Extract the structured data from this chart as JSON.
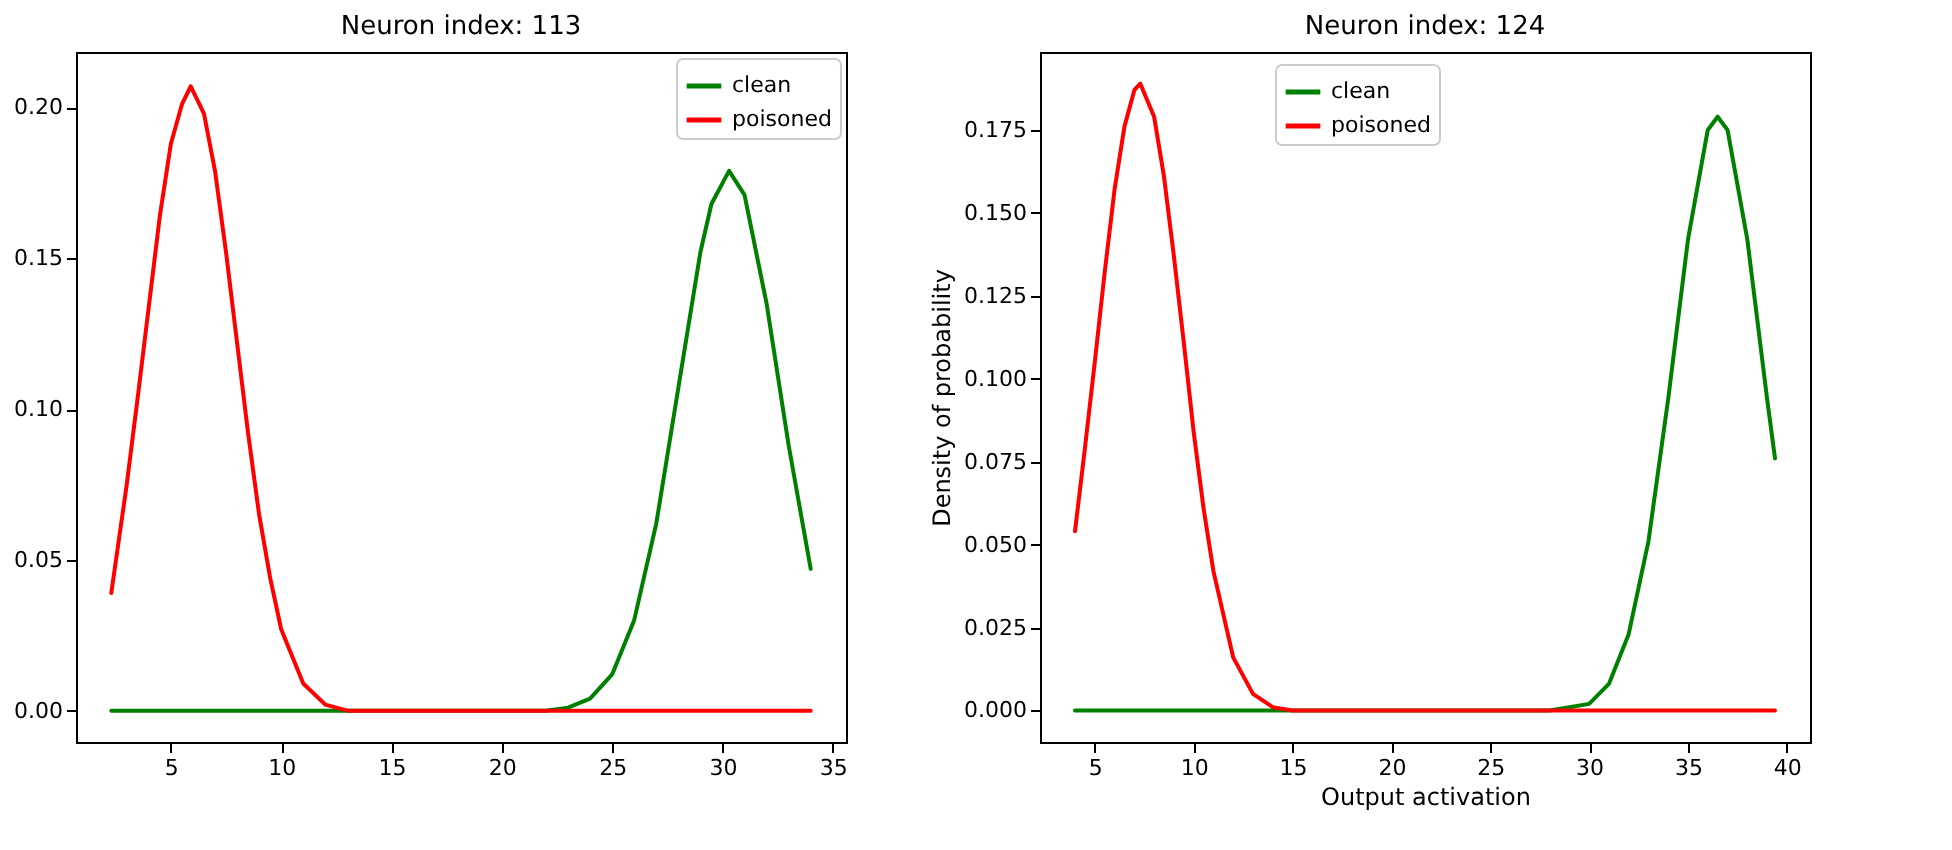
{
  "chart_data": [
    {
      "type": "line",
      "title": "Neuron index: 113",
      "xlim": [
        0.7,
        35.6
      ],
      "ylim": [
        -0.0104,
        0.2184
      ],
      "xticks": [
        5,
        10,
        15,
        20,
        25,
        30,
        35
      ],
      "yticks": [
        {
          "value": 0,
          "label": "0.00"
        },
        {
          "value": 0.05,
          "label": "0.05"
        },
        {
          "value": 0.1,
          "label": "0.10"
        },
        {
          "value": 0.15,
          "label": "0.15"
        },
        {
          "value": 0.2,
          "label": "0.20"
        }
      ],
      "grid": false,
      "legend": "top right",
      "line_style": "solid",
      "marker": "none",
      "tick_labels": true,
      "series": [
        {
          "name": "clean",
          "color": "#008000",
          "x": [
            2.3,
            10,
            20,
            22,
            23,
            24,
            25,
            26,
            27,
            28,
            29,
            29.5,
            30.3,
            31,
            32,
            33,
            34
          ],
          "values": [
            0,
            0,
            0,
            0,
            0.001,
            0.004,
            0.012,
            0.03,
            0.062,
            0.107,
            0.152,
            0.168,
            0.179,
            0.171,
            0.135,
            0.088,
            0.047
          ]
        },
        {
          "name": "poisoned",
          "color": "#ff0000",
          "x": [
            2.3,
            3,
            3.5,
            4,
            4.5,
            5,
            5.5,
            5.9,
            6.5,
            7,
            7.5,
            8,
            8.5,
            9,
            9.5,
            10,
            11,
            12,
            13,
            14,
            20,
            25,
            30,
            34
          ],
          "values": [
            0.039,
            0.075,
            0.104,
            0.134,
            0.164,
            0.188,
            0.201,
            0.207,
            0.198,
            0.179,
            0.152,
            0.122,
            0.092,
            0.065,
            0.044,
            0.027,
            0.009,
            0.002,
            0,
            0,
            0,
            0,
            0,
            0
          ]
        }
      ]
    },
    {
      "type": "line",
      "title": "Neuron index: 124",
      "xlabel": "Output activation",
      "ylabel": "Density of probability",
      "xlim": [
        2.23,
        41.17
      ],
      "ylim": [
        -0.0095,
        0.1985
      ],
      "xticks": [
        5,
        10,
        15,
        20,
        25,
        30,
        35,
        40
      ],
      "yticks": [
        {
          "value": 0,
          "label": "0.000"
        },
        0.025,
        {
          "value": 0.05,
          "label": "0.050"
        },
        0.075,
        {
          "value": 0.1,
          "label": "0.100"
        },
        0.125,
        {
          "value": 0.15,
          "label": "0.150"
        },
        0.175
      ],
      "grid": false,
      "legend": "top",
      "line_style": "solid",
      "marker": "none",
      "series": [
        {
          "name": "clean",
          "color": "#008000",
          "x": [
            4,
            15,
            25,
            28,
            29,
            30,
            31,
            32,
            33,
            34,
            35,
            36,
            36.5,
            37,
            38,
            39,
            39.4
          ],
          "values": [
            0,
            0,
            0,
            0,
            0.001,
            0.002,
            0.008,
            0.023,
            0.051,
            0.094,
            0.142,
            0.175,
            0.179,
            0.175,
            0.142,
            0.094,
            0.076
          ]
        },
        {
          "name": "poisoned",
          "color": "#ff0000",
          "x": [
            4,
            4.5,
            5,
            5.5,
            6,
            6.5,
            7,
            7.3,
            8,
            8.5,
            9,
            9.5,
            10,
            10.5,
            11,
            12,
            13,
            14,
            15,
            20,
            30,
            39.4
          ],
          "values": [
            0.054,
            0.079,
            0.105,
            0.132,
            0.157,
            0.176,
            0.187,
            0.189,
            0.179,
            0.161,
            0.137,
            0.111,
            0.084,
            0.061,
            0.042,
            0.016,
            0.005,
            0.001,
            0,
            0,
            0,
            0
          ]
        }
      ]
    }
  ]
}
